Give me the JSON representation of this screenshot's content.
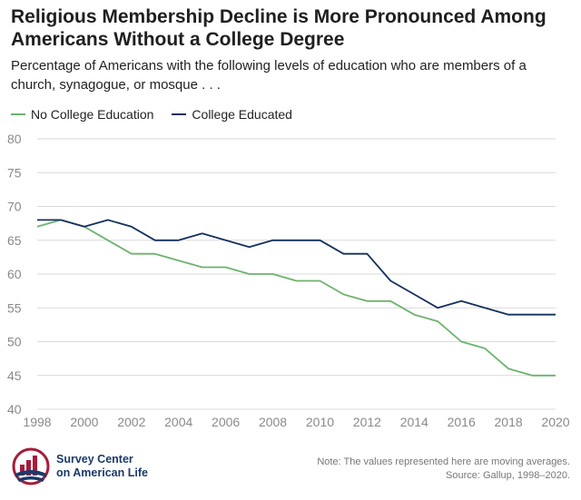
{
  "chart_data": {
    "type": "line",
    "title": "Religious Membership Decline is More Pronounced Among Americans Without a College Degree",
    "subtitle": "Percentage of Americans with the following levels of education who are members of a church, synagogue, or mosque . . .",
    "x": [
      1998,
      1999,
      2000,
      2001,
      2002,
      2003,
      2004,
      2005,
      2006,
      2007,
      2008,
      2009,
      2010,
      2011,
      2012,
      2013,
      2014,
      2015,
      2016,
      2017,
      2018,
      2019,
      2020
    ],
    "x_ticks": [
      1998,
      2000,
      2002,
      2004,
      2006,
      2008,
      2010,
      2012,
      2014,
      2016,
      2018,
      2020
    ],
    "y_ticks": [
      40,
      45,
      50,
      55,
      60,
      65,
      70,
      75,
      80
    ],
    "xlim": [
      1998,
      2020
    ],
    "ylim": [
      40,
      80
    ],
    "grid": "horizontal",
    "legend_position": "top-left",
    "series": [
      {
        "name": "No College Education",
        "color": "#6db36d",
        "values": [
          67,
          68,
          67,
          65,
          63,
          63,
          62,
          61,
          61,
          60,
          60,
          59,
          59,
          57,
          56,
          56,
          54,
          53,
          50,
          49,
          46,
          45,
          45
        ]
      },
      {
        "name": "College Educated",
        "color": "#14305e",
        "values": [
          68,
          68,
          67,
          68,
          67,
          65,
          65,
          66,
          65,
          64,
          65,
          65,
          65,
          63,
          63,
          59,
          57,
          55,
          56,
          55,
          54,
          54,
          54
        ]
      }
    ]
  },
  "logo": {
    "line1": "Survey Center",
    "line2": "on American Life"
  },
  "footnote": {
    "note": "Note: The values represented here are moving averages.",
    "source": "Source: Gallup, 1998–2020."
  },
  "colors": {
    "grid": "#d9d9d9",
    "tick_label": "#8a8a8a",
    "logo_blue": "#1b3a6b",
    "logo_red": "#a51d3c"
  }
}
